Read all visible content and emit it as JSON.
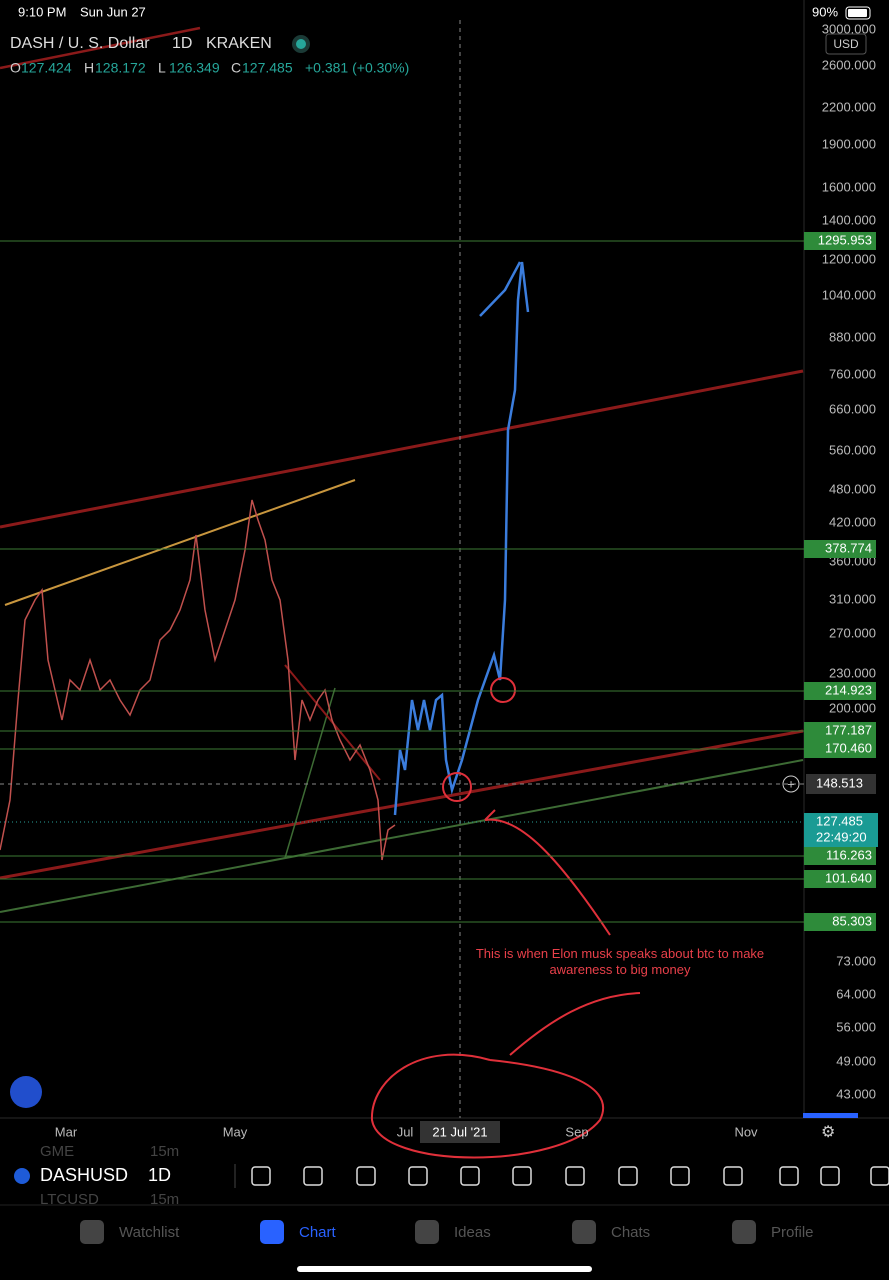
{
  "status_bar": {
    "time": "9:10 PM",
    "date": "Sun Jun 27",
    "battery": "90%"
  },
  "header": {
    "symbol": "DASH / U. S. Dollar",
    "interval": "1D",
    "exchange": "KRAKEN",
    "ohlc": [
      {
        "label": "O",
        "value": "127.424"
      },
      {
        "label": "H",
        "value": "128.172"
      },
      {
        "label": "L",
        "value": "126.349"
      },
      {
        "label": "C",
        "value": "127.485"
      }
    ],
    "change": "+0.381 (+0.30%)"
  },
  "price_axis": {
    "currency": "USD",
    "labels": [
      "3000.000",
      "2600.000",
      "2200.000",
      "1900.000",
      "1600.000",
      "1400.000",
      "1200.000",
      "1040.000",
      "880.000",
      "760.000",
      "660.000",
      "560.000",
      "480.000",
      "420.000",
      "360.000",
      "310.000",
      "270.000",
      "230.000",
      "200.000",
      "73.000",
      "64.000",
      "56.000",
      "49.000",
      "43.000"
    ]
  },
  "levels": [
    "1295.953",
    "378.774",
    "214.923",
    "177.187",
    "170.460",
    "116.263",
    "101.640",
    "85.303"
  ],
  "last_price": {
    "price": "127.485",
    "countdown": "22:49:20"
  },
  "crosshair": {
    "price": "148.513",
    "date": "21 Jul '21"
  },
  "time_axis": [
    "Mar",
    "May",
    "Jul",
    "Sep",
    "Nov"
  ],
  "annotation": "This is when Elon musk speaks about btc to make awareness to big money",
  "toolbar": {
    "symbol": "DASHUSD",
    "interval": "1D",
    "ghost": [
      "GME",
      "15m",
      "LTCUSD",
      "15m"
    ]
  },
  "tabs": [
    "Watchlist",
    "Chart",
    "Ideas",
    "Chats",
    "Profile"
  ]
}
